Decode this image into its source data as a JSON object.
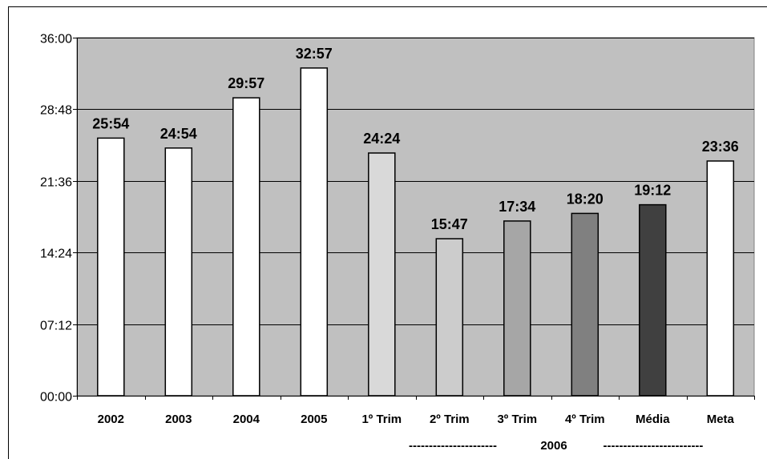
{
  "chart_data": {
    "type": "bar",
    "title": "",
    "xlabel": "",
    "ylabel": "",
    "y_unit": "mm:ss",
    "ylim": [
      "00:00",
      "36:00"
    ],
    "y_ticks": [
      "00:00",
      "07:12",
      "14:24",
      "21:36",
      "28:48",
      "36:00"
    ],
    "grid": true,
    "categories": [
      "2002",
      "2003",
      "2004",
      "2005",
      "1º Trim",
      "2º Trim",
      "3º Trim",
      "4º Trim",
      "Média",
      "Meta"
    ],
    "values": [
      "25:54",
      "24:54",
      "29:57",
      "32:57",
      "24:24",
      "15:47",
      "17:34",
      "18:20",
      "19:12",
      "23:36"
    ],
    "group_label": {
      "left_dashes": "----------------------",
      "text": "2006",
      "right_dashes": "-------------------------"
    },
    "colors": {
      "plot_background": "#c0c0c0",
      "bars": [
        "#ffffff",
        "#ffffff",
        "#ffffff",
        "#ffffff",
        "#d9d9d9",
        "#cccccc",
        "#a6a6a6",
        "#808080",
        "#404040",
        "#ffffff"
      ]
    }
  }
}
